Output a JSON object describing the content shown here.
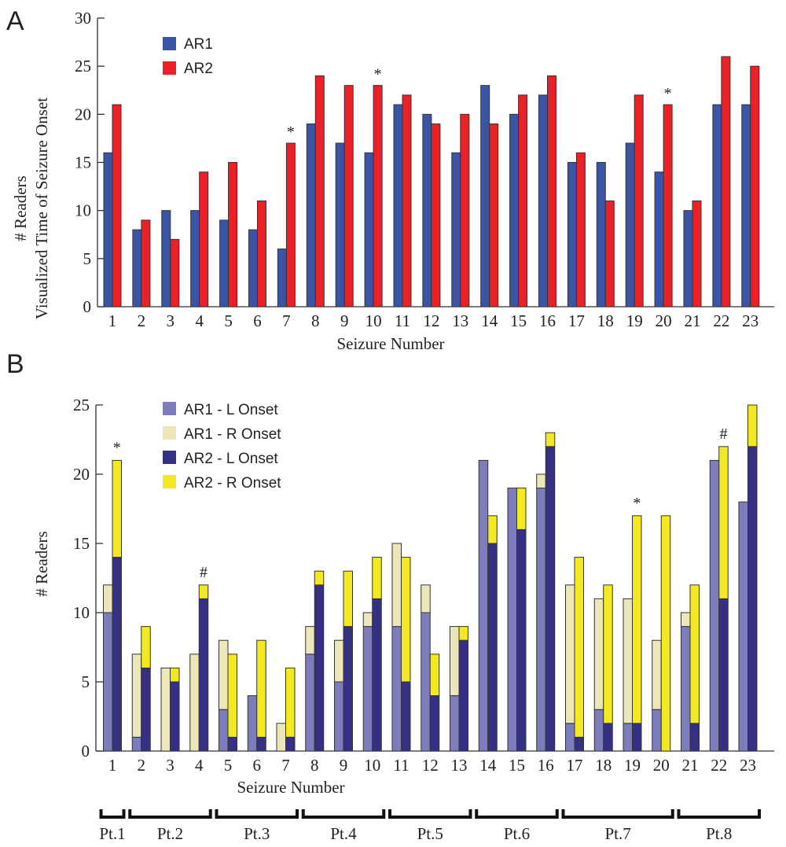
{
  "chart_data": [
    {
      "panel": "A",
      "type": "bar",
      "title": "",
      "xlabel": "Seizure Number",
      "ylabel_lines": [
        "# Readers",
        "Visualized Time of Seizure Onset"
      ],
      "ylim": [
        0,
        30
      ],
      "yticks": [
        0,
        5,
        10,
        15,
        20,
        25,
        30
      ],
      "categories": [
        "1",
        "2",
        "3",
        "4",
        "5",
        "6",
        "7",
        "8",
        "9",
        "10",
        "11",
        "12",
        "13",
        "14",
        "15",
        "16",
        "17",
        "18",
        "19",
        "20",
        "21",
        "22",
        "23"
      ],
      "series": [
        {
          "name": "AR1",
          "color": "#3a55a6",
          "values": [
            16,
            8,
            10,
            10,
            9,
            8,
            6,
            19,
            17,
            16,
            21,
            20,
            16,
            23,
            20,
            22,
            15,
            15,
            17,
            14,
            10,
            21,
            21
          ]
        },
        {
          "name": "AR2",
          "color": "#ec2127",
          "values": [
            21,
            9,
            7,
            14,
            15,
            11,
            17,
            24,
            23,
            23,
            22,
            19,
            20,
            19,
            22,
            24,
            16,
            11,
            22,
            21,
            11,
            26,
            25
          ]
        }
      ],
      "annotations": [
        {
          "category": "7",
          "text": "*"
        },
        {
          "category": "10",
          "text": "*"
        },
        {
          "category": "20",
          "text": "*"
        }
      ],
      "legend_position": "top-left",
      "grid": false
    },
    {
      "panel": "B",
      "type": "bar",
      "stacked": true,
      "title": "",
      "xlabel": "Seizure Number",
      "ylabel": "# Readers",
      "ylim": [
        0,
        25
      ],
      "yticks": [
        0,
        5,
        10,
        15,
        20,
        25
      ],
      "categories": [
        "1",
        "2",
        "3",
        "4",
        "5",
        "6",
        "7",
        "8",
        "9",
        "10",
        "11",
        "12",
        "13",
        "14",
        "15",
        "16",
        "17",
        "18",
        "19",
        "20",
        "21",
        "22",
        "23"
      ],
      "series": [
        {
          "name": "AR1 - L Onset",
          "group": "AR1",
          "color": "#7e7dbb",
          "values": [
            10,
            1,
            0,
            0,
            3,
            4,
            0,
            7,
            5,
            9,
            9,
            10,
            4,
            21,
            19,
            19,
            2,
            3,
            2,
            3,
            9,
            21,
            18
          ]
        },
        {
          "name": "AR1 - R Onset",
          "group": "AR1",
          "color": "#ece6b8",
          "values": [
            2,
            6,
            6,
            7,
            5,
            0,
            2,
            2,
            3,
            1,
            6,
            2,
            5,
            0,
            0,
            1,
            10,
            8,
            9,
            5,
            1,
            0,
            0
          ]
        },
        {
          "name": "AR2 - L Onset",
          "group": "AR2",
          "color": "#363085",
          "values": [
            14,
            6,
            5,
            11,
            1,
            1,
            1,
            12,
            9,
            11,
            5,
            4,
            8,
            15,
            16,
            22,
            1,
            2,
            2,
            0,
            2,
            11,
            22
          ]
        },
        {
          "name": "AR2 - R Onset",
          "group": "AR2",
          "color": "#f2e921",
          "values": [
            7,
            3,
            1,
            1,
            6,
            7,
            5,
            1,
            4,
            3,
            9,
            3,
            1,
            2,
            3,
            1,
            13,
            10,
            15,
            17,
            10,
            11,
            3
          ]
        }
      ],
      "annotations": [
        {
          "category": "1",
          "text": "*"
        },
        {
          "category": "4",
          "text": "#"
        },
        {
          "category": "19",
          "text": "*"
        },
        {
          "category": "22",
          "text": "#"
        }
      ],
      "patient_groups": [
        {
          "label": "Pt.1",
          "from": 1,
          "to": 1
        },
        {
          "label": "Pt.2",
          "from": 2,
          "to": 4
        },
        {
          "label": "Pt.3",
          "from": 5,
          "to": 7
        },
        {
          "label": "Pt.4",
          "from": 8,
          "to": 10
        },
        {
          "label": "Pt.5",
          "from": 11,
          "to": 13
        },
        {
          "label": "Pt.6",
          "from": 14,
          "to": 16
        },
        {
          "label": "Pt.7",
          "from": 17,
          "to": 20
        },
        {
          "label": "Pt.8",
          "from": 21,
          "to": 23
        }
      ],
      "legend_position": "top-left",
      "grid": false
    }
  ],
  "panel_labels": [
    "A",
    "B"
  ]
}
